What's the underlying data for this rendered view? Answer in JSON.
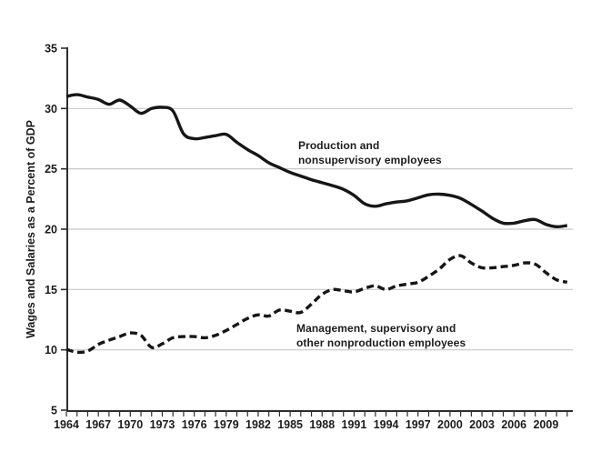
{
  "page": {
    "background": "#ffffff"
  },
  "chart_data": {
    "type": "line",
    "title": "",
    "xlabel": "",
    "ylabel": "Wages and Salaries as a Percent of GDP",
    "ylim": [
      5,
      35
    ],
    "yticks": [
      5,
      10,
      15,
      20,
      25,
      30,
      35
    ],
    "gridlines_at": [
      10,
      15,
      20,
      25,
      30
    ],
    "grid": "horizontal-only",
    "legend_position": "inline-annotations",
    "xtick_labels": [
      "1964",
      "1967",
      "1970",
      "1973",
      "1976",
      "1979",
      "1982",
      "1985",
      "1988",
      "1991",
      "1994",
      "1997",
      "2000",
      "2003",
      "2006",
      "2009"
    ],
    "x": [
      1964,
      1965,
      1966,
      1967,
      1968,
      1969,
      1970,
      1971,
      1972,
      1973,
      1974,
      1975,
      1976,
      1977,
      1978,
      1979,
      1980,
      1981,
      1982,
      1983,
      1984,
      1985,
      1986,
      1987,
      1988,
      1989,
      1990,
      1991,
      1992,
      1993,
      1994,
      1995,
      1996,
      1997,
      1998,
      1999,
      2000,
      2001,
      2002,
      2003,
      2004,
      2005,
      2006,
      2007,
      2008,
      2009,
      2010,
      2011
    ],
    "series": [
      {
        "name": "Production and nonsupervisory employees",
        "label_lines": [
          "Production and",
          "nonsupervisory employees"
        ],
        "line_style": "solid",
        "color": "#161616",
        "values": [
          31.0,
          31.15,
          30.95,
          30.75,
          30.35,
          30.7,
          30.2,
          29.6,
          30.0,
          30.1,
          29.8,
          27.9,
          27.5,
          27.6,
          27.75,
          27.85,
          27.2,
          26.6,
          26.1,
          25.5,
          25.1,
          24.7,
          24.4,
          24.1,
          23.85,
          23.6,
          23.3,
          22.8,
          22.1,
          21.9,
          22.1,
          22.25,
          22.35,
          22.6,
          22.85,
          22.9,
          22.8,
          22.55,
          22.05,
          21.5,
          20.9,
          20.5,
          20.5,
          20.7,
          20.8,
          20.4,
          20.2,
          20.3
        ]
      },
      {
        "name": "Management, supervisory and other nonproduction employees",
        "label_lines": [
          "Management, supervisory and",
          "other nonproduction employees"
        ],
        "line_style": "dashed",
        "color": "#161616",
        "values": [
          10.05,
          9.8,
          9.9,
          10.45,
          10.8,
          11.1,
          11.4,
          11.2,
          10.2,
          10.5,
          11.0,
          11.1,
          11.1,
          11.0,
          11.2,
          11.6,
          12.1,
          12.6,
          12.9,
          12.8,
          13.3,
          13.2,
          13.1,
          13.8,
          14.6,
          15.0,
          14.9,
          14.8,
          15.1,
          15.3,
          15.0,
          15.3,
          15.45,
          15.6,
          16.1,
          16.7,
          17.5,
          17.8,
          17.2,
          16.8,
          16.8,
          16.9,
          17.0,
          17.2,
          17.1,
          16.4,
          15.8,
          15.6
        ]
      }
    ],
    "colors": {
      "line": "#161616",
      "gridline": "#c8c8c8",
      "axis": "#2e2e2e",
      "text": "#1c1c1c"
    }
  }
}
